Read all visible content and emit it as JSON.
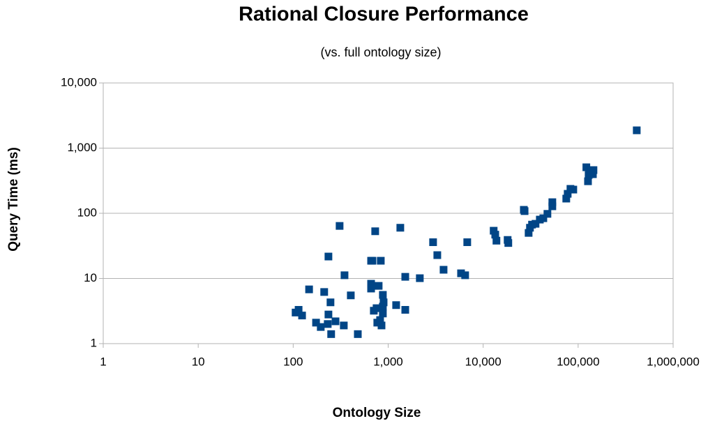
{
  "chart_data": {
    "type": "scatter",
    "title": "Rational Closure Performance",
    "subtitle": "(vs. full ontology size)",
    "x_label": "Ontology Size",
    "y_label": "Query Time (ms)",
    "xscale": "log",
    "yscale": "log",
    "grid": true,
    "xlim": [
      1,
      1000000
    ],
    "xticks": [
      1,
      10,
      100,
      {
        "value": 1000,
        "label": "1,000"
      },
      {
        "value": 10000,
        "label": "10,000"
      },
      {
        "value": 100000,
        "label": "100,000"
      },
      {
        "value": 1000000,
        "label": "1,000,000"
      }
    ],
    "ylim": [
      1,
      10000
    ],
    "yticks": [
      1,
      10,
      100,
      {
        "value": 1000,
        "label": "1,000"
      },
      {
        "value": 10000,
        "label": "10,000"
      }
    ],
    "series": [
      {
        "color": "#004586",
        "x": [
          106,
          114,
          124,
          147,
          174,
          195,
          212,
          231,
          235,
          235,
          247,
          251,
          279,
          308,
          341,
          347,
          404,
          479,
          661,
          661,
          661,
          683,
          730,
          706,
          755,
          768,
          794,
          836,
          822,
          851,
          879,
          879,
          895,
          879,
          1213,
          1342,
          1513,
          1513,
          2153,
          2970,
          3290,
          3830,
          5850,
          6460,
          6800,
          12900,
          13400,
          13800,
          18100,
          18400,
          26800,
          27300,
          30100,
          31100,
          32700,
          35600,
          39500,
          43000,
          47500,
          53500,
          53500,
          75000,
          77600,
          83000,
          88900,
          122000,
          127000,
          129000,
          133000,
          138000,
          143000,
          145000,
          414000
        ],
        "values": [
          3.0,
          3.3,
          2.7,
          6.8,
          2.1,
          1.8,
          6.2,
          2.0,
          21.7,
          2.8,
          4.3,
          1.4,
          2.2,
          64,
          1.9,
          11.2,
          5.5,
          1.4,
          18.7,
          8.3,
          7.0,
          18.7,
          53,
          3.2,
          3.5,
          2.1,
          7.7,
          18.7,
          2.3,
          1.9,
          3.7,
          5.6,
          4.3,
          2.9,
          3.9,
          60,
          10.6,
          3.3,
          10.1,
          36,
          22.8,
          13.6,
          12,
          11.2,
          36,
          54,
          47,
          38,
          39,
          35,
          113,
          108,
          50,
          60,
          67,
          69,
          80,
          84,
          98,
          148,
          128,
          168,
          199,
          237,
          231,
          508,
          310,
          387,
          398,
          460,
          398,
          460,
          1875
        ]
      }
    ]
  }
}
